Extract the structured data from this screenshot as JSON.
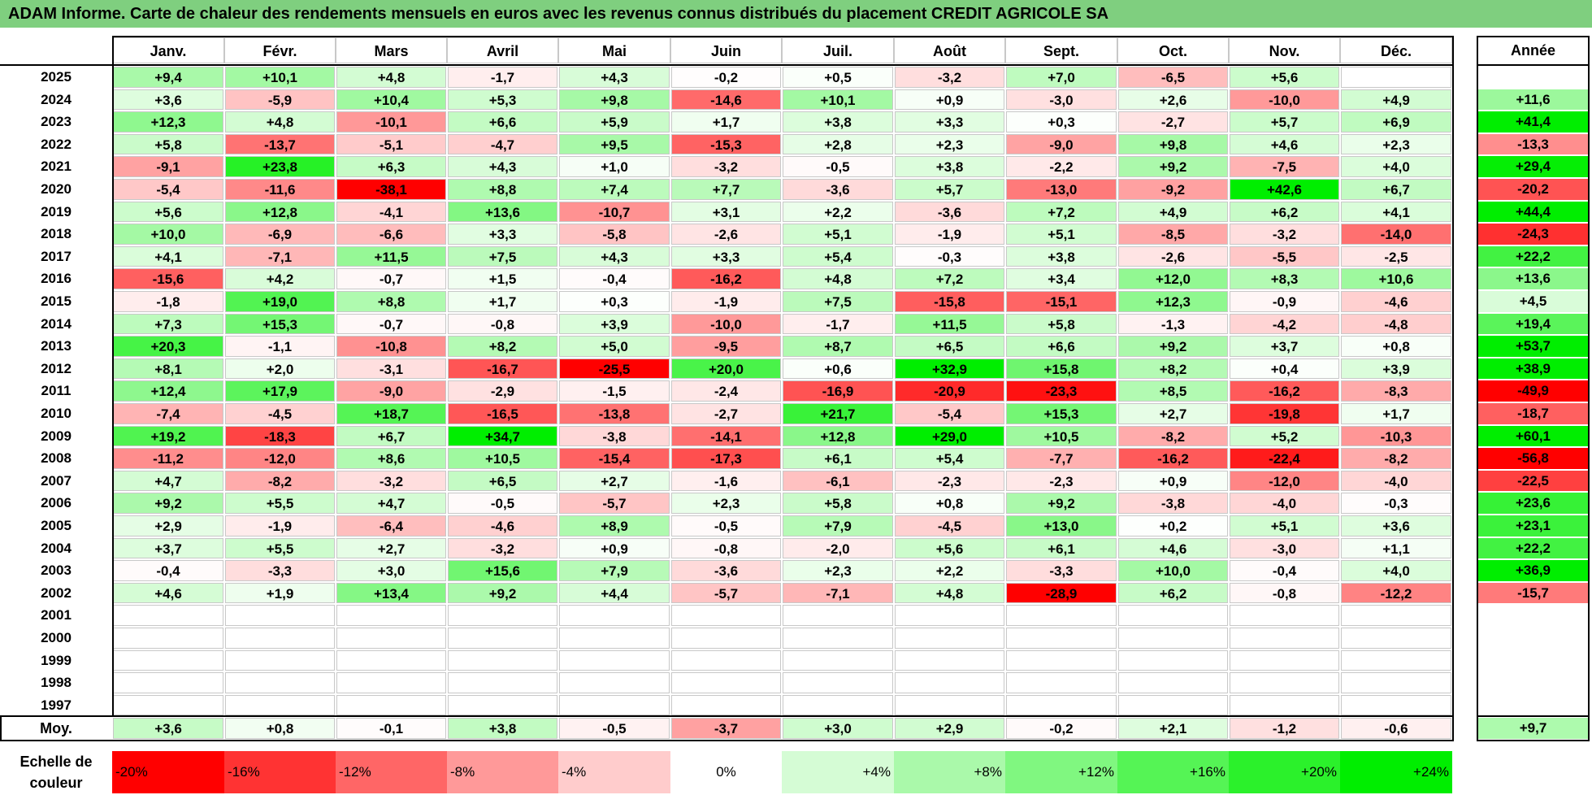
{
  "title": "ADAM Informe. Carte de chaleur des rendements mensuels en euros avec les revenus connus distribués du placement CREDIT AGRICOLE SA",
  "chart_data": {
    "type": "heatmap",
    "columns": [
      "Janv.",
      "Févr.",
      "Mars",
      "Avril",
      "Mai",
      "Juin",
      "Juil.",
      "Août",
      "Sept.",
      "Oct.",
      "Nov.",
      "Déc."
    ],
    "year_column": "Année",
    "rows": [
      {
        "year": "2025",
        "values": [
          "+9,4",
          "+10,1",
          "+4,8",
          "-1,7",
          "+4,3",
          "-0,2",
          "+0,5",
          "-3,2",
          "+7,0",
          "-6,5",
          "+5,6",
          ""
        ],
        "annual": ""
      },
      {
        "year": "2024",
        "values": [
          "+3,6",
          "-5,9",
          "+10,4",
          "+5,3",
          "+9,8",
          "-14,6",
          "+10,1",
          "+0,9",
          "-3,0",
          "+2,6",
          "-10,0",
          "+4,9"
        ],
        "annual": "+11,6"
      },
      {
        "year": "2023",
        "values": [
          "+12,3",
          "+4,8",
          "-10,1",
          "+6,6",
          "+5,9",
          "+1,7",
          "+3,8",
          "+3,3",
          "+0,3",
          "-2,7",
          "+5,7",
          "+6,9"
        ],
        "annual": "+41,4"
      },
      {
        "year": "2022",
        "values": [
          "+5,8",
          "-13,7",
          "-5,1",
          "-4,7",
          "+9,5",
          "-15,3",
          "+2,8",
          "+2,3",
          "-9,0",
          "+9,8",
          "+4,6",
          "+2,3"
        ],
        "annual": "-13,3"
      },
      {
        "year": "2021",
        "values": [
          "-9,1",
          "+23,8",
          "+6,3",
          "+4,3",
          "+1,0",
          "-3,2",
          "-0,5",
          "+3,8",
          "-2,2",
          "+9,2",
          "-7,5",
          "+4,0"
        ],
        "annual": "+29,4"
      },
      {
        "year": "2020",
        "values": [
          "-5,4",
          "-11,6",
          "-38,1",
          "+8,8",
          "+7,4",
          "+7,7",
          "-3,6",
          "+5,7",
          "-13,0",
          "-9,2",
          "+42,6",
          "+6,7"
        ],
        "annual": "-20,2"
      },
      {
        "year": "2019",
        "values": [
          "+5,6",
          "+12,8",
          "-4,1",
          "+13,6",
          "-10,7",
          "+3,1",
          "+2,2",
          "-3,6",
          "+7,2",
          "+4,9",
          "+6,2",
          "+4,1"
        ],
        "annual": "+44,4"
      },
      {
        "year": "2018",
        "values": [
          "+10,0",
          "-6,9",
          "-6,6",
          "+3,3",
          "-5,8",
          "-2,6",
          "+5,1",
          "-1,9",
          "+5,1",
          "-8,5",
          "-3,2",
          "-14,0"
        ],
        "annual": "-24,3"
      },
      {
        "year": "2017",
        "values": [
          "+4,1",
          "-7,1",
          "+11,5",
          "+7,5",
          "+4,3",
          "+3,3",
          "+5,4",
          "-0,3",
          "+3,8",
          "-2,6",
          "-5,5",
          "-2,5"
        ],
        "annual": "+22,2"
      },
      {
        "year": "2016",
        "values": [
          "-15,6",
          "+4,2",
          "-0,7",
          "+1,5",
          "-0,4",
          "-16,2",
          "+4,8",
          "+7,2",
          "+3,4",
          "+12,0",
          "+8,3",
          "+10,6"
        ],
        "annual": "+13,6"
      },
      {
        "year": "2015",
        "values": [
          "-1,8",
          "+19,0",
          "+8,8",
          "+1,7",
          "+0,3",
          "-1,9",
          "+7,5",
          "-15,8",
          "-15,1",
          "+12,3",
          "-0,9",
          "-4,6"
        ],
        "annual": "+4,5"
      },
      {
        "year": "2014",
        "values": [
          "+7,3",
          "+15,3",
          "-0,7",
          "-0,8",
          "+3,9",
          "-10,0",
          "-1,7",
          "+11,5",
          "+5,8",
          "-1,3",
          "-4,2",
          "-4,8"
        ],
        "annual": "+19,4"
      },
      {
        "year": "2013",
        "values": [
          "+20,3",
          "-1,1",
          "-10,8",
          "+8,2",
          "+5,0",
          "-9,5",
          "+8,7",
          "+6,5",
          "+6,6",
          "+9,2",
          "+3,7",
          "+0,8"
        ],
        "annual": "+53,7"
      },
      {
        "year": "2012",
        "values": [
          "+8,1",
          "+2,0",
          "-3,1",
          "-16,7",
          "-25,5",
          "+20,0",
          "+0,6",
          "+32,9",
          "+15,8",
          "+8,2",
          "+0,4",
          "+3,9"
        ],
        "annual": "+38,9"
      },
      {
        "year": "2011",
        "values": [
          "+12,4",
          "+17,9",
          "-9,0",
          "-2,9",
          "-1,5",
          "-2,4",
          "-16,9",
          "-20,9",
          "-23,3",
          "+8,5",
          "-16,2",
          "-8,3"
        ],
        "annual": "-49,9"
      },
      {
        "year": "2010",
        "values": [
          "-7,4",
          "-4,5",
          "+18,7",
          "-16,5",
          "-13,8",
          "-2,7",
          "+21,7",
          "-5,4",
          "+15,3",
          "+2,7",
          "-19,8",
          "+1,7"
        ],
        "annual": "-18,7"
      },
      {
        "year": "2009",
        "values": [
          "+19,2",
          "-18,3",
          "+6,7",
          "+34,7",
          "-3,8",
          "-14,1",
          "+12,8",
          "+29,0",
          "+10,5",
          "-8,2",
          "+5,2",
          "-10,3"
        ],
        "annual": "+60,1"
      },
      {
        "year": "2008",
        "values": [
          "-11,2",
          "-12,0",
          "+8,6",
          "+10,5",
          "-15,4",
          "-17,3",
          "+6,1",
          "+5,4",
          "-7,7",
          "-16,2",
          "-22,4",
          "-8,2"
        ],
        "annual": "-56,8"
      },
      {
        "year": "2007",
        "values": [
          "+4,7",
          "-8,2",
          "-3,2",
          "+6,5",
          "+2,7",
          "-1,6",
          "-6,1",
          "-2,3",
          "-2,3",
          "+0,9",
          "-12,0",
          "-4,0"
        ],
        "annual": "-22,5"
      },
      {
        "year": "2006",
        "values": [
          "+9,2",
          "+5,5",
          "+4,7",
          "-0,5",
          "-5,7",
          "+2,3",
          "+5,8",
          "+0,8",
          "+9,2",
          "-3,8",
          "-4,0",
          "-0,3"
        ],
        "annual": "+23,6"
      },
      {
        "year": "2005",
        "values": [
          "+2,9",
          "-1,9",
          "-6,4",
          "-4,6",
          "+8,9",
          "-0,5",
          "+7,9",
          "-4,5",
          "+13,0",
          "+0,2",
          "+5,1",
          "+3,6"
        ],
        "annual": "+23,1"
      },
      {
        "year": "2004",
        "values": [
          "+3,7",
          "+5,5",
          "+2,7",
          "-3,2",
          "+0,9",
          "-0,8",
          "-2,0",
          "+5,6",
          "+6,1",
          "+4,6",
          "-3,0",
          "+1,1"
        ],
        "annual": "+22,2"
      },
      {
        "year": "2003",
        "values": [
          "-0,4",
          "-3,3",
          "+3,0",
          "+15,6",
          "+7,9",
          "-3,6",
          "+2,3",
          "+2,2",
          "-3,3",
          "+10,0",
          "-0,4",
          "+4,0"
        ],
        "annual": "+36,9"
      },
      {
        "year": "2002",
        "values": [
          "+4,6",
          "+1,9",
          "+13,4",
          "+9,2",
          "+4,4",
          "-5,7",
          "-7,1",
          "+4,8",
          "-28,9",
          "+6,2",
          "-0,8",
          "-12,2"
        ],
        "annual": "-15,7"
      },
      {
        "year": "2001",
        "values": [
          "",
          "",
          "",
          "",
          "",
          "",
          "",
          "",
          "",
          "",
          "",
          ""
        ],
        "annual": ""
      },
      {
        "year": "2000",
        "values": [
          "",
          "",
          "",
          "",
          "",
          "",
          "",
          "",
          "",
          "",
          "",
          ""
        ],
        "annual": ""
      },
      {
        "year": "1999",
        "values": [
          "",
          "",
          "",
          "",
          "",
          "",
          "",
          "",
          "",
          "",
          "",
          ""
        ],
        "annual": ""
      },
      {
        "year": "1998",
        "values": [
          "",
          "",
          "",
          "",
          "",
          "",
          "",
          "",
          "",
          "",
          "",
          ""
        ],
        "annual": ""
      },
      {
        "year": "1997",
        "values": [
          "",
          "",
          "",
          "",
          "",
          "",
          "",
          "",
          "",
          "",
          "",
          ""
        ],
        "annual": ""
      }
    ],
    "average": {
      "label": "Moy.",
      "values": [
        "+3,6",
        "+0,8",
        "-0,1",
        "+3,8",
        "-0,5",
        "-3,7",
        "+3,0",
        "+2,9",
        "-0,2",
        "+2,1",
        "-1,2",
        "-0,6"
      ],
      "annual": "+9,7"
    },
    "color_scale": {
      "label": "Echelle de couleur",
      "stops": [
        "-20%",
        "-16%",
        "-12%",
        "-8%",
        "-4%",
        "0%",
        "+4%",
        "+8%",
        "+12%",
        "+16%",
        "+20%",
        "+24%"
      ],
      "negative_color": "#ff0000",
      "neutral_color": "#ffffff",
      "positive_color": "#00ee00"
    }
  }
}
